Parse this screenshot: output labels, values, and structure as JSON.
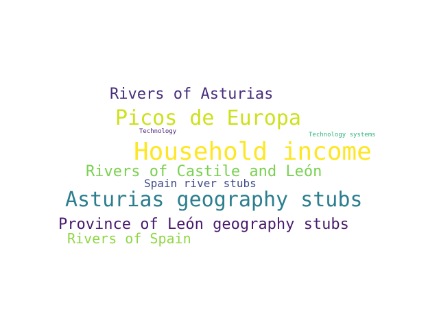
{
  "background_color": "#ffffff",
  "words": [
    {
      "text": "Rivers of Asturias",
      "color": "#472d7b"
    },
    {
      "text": "Picos de Europa",
      "color": "#cde11d"
    },
    {
      "text": "Technology",
      "color": "#482173"
    },
    {
      "text": "Technology systems",
      "color": "#2fb47c"
    },
    {
      "text": "Household income",
      "color": "#fde725"
    },
    {
      "text": "Rivers of Castile and León",
      "color": "#7ad151"
    },
    {
      "text": "Spain river stubs",
      "color": "#3e4a89"
    },
    {
      "text": "Asturias geography stubs",
      "color": "#2c7e8e"
    },
    {
      "text": "Province of León geography stubs",
      "color": "#481a6c"
    },
    {
      "text": "Rivers of Spain",
      "color": "#8fd744"
    }
  ]
}
